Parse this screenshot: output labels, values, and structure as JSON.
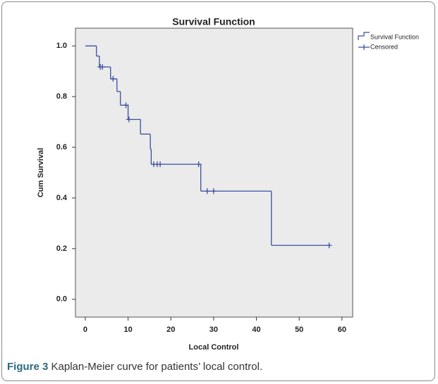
{
  "chart_data": {
    "type": "step",
    "title": "Survival Function",
    "x_label": "Local Control",
    "y_label": "Cum Survival",
    "xlim": [
      -2.3,
      62.5
    ],
    "ylim": [
      -0.07,
      1.07
    ],
    "xticks": [
      0,
      10,
      20,
      30,
      40,
      50,
      60
    ],
    "yticks": [
      {
        "value": 0,
        "label": "0.0"
      },
      {
        "value": 0.2,
        "label": "0.2"
      },
      {
        "value": 0.4,
        "label": "0.4"
      },
      {
        "value": 0.6,
        "label": "0.6"
      },
      {
        "value": 0.8,
        "label": "0.8"
      },
      {
        "value": 1,
        "label": "1.0"
      }
    ],
    "legend_position": "outside-right",
    "series": [
      {
        "name": "Survival Function",
        "color": "#3b4ea0",
        "x": [
          0,
          2.6,
          3.3,
          5.9,
          7.4,
          8.2,
          10,
          12.9,
          15.2,
          15.4,
          27,
          43.5,
          57
        ],
        "values": [
          1.0,
          0.96,
          0.917,
          0.87,
          0.82,
          0.766,
          0.71,
          0.652,
          0.593,
          0.533,
          0.427,
          0.213,
          0.213
        ]
      },
      {
        "name": "Censored",
        "color": "#3b4ea0",
        "x": [
          3.5,
          4,
          6.5,
          9.5,
          10.2,
          16,
          16.8,
          17.5,
          26.5,
          28.5,
          30,
          57
        ],
        "values": [
          0.917,
          0.917,
          0.87,
          0.766,
          0.71,
          0.533,
          0.533,
          0.533,
          0.533,
          0.427,
          0.427,
          0.213
        ]
      }
    ]
  },
  "caption": {
    "label": "Figure 3",
    "text": "Kaplan-Meier curve for patients’ local control."
  }
}
